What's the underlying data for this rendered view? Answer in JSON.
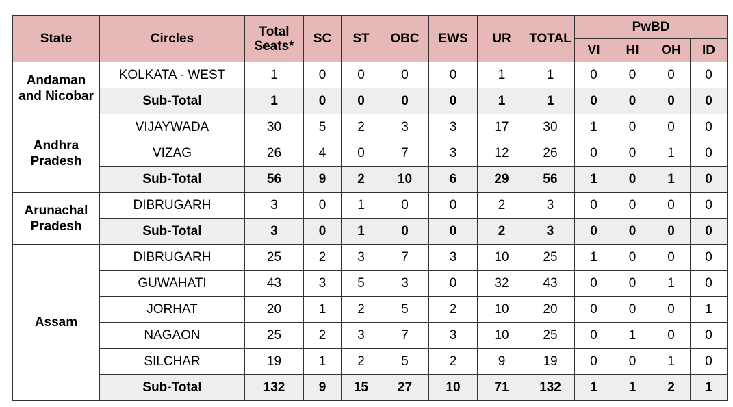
{
  "table": {
    "header": {
      "state": "State",
      "circles": "Circles",
      "total_seats": "Total Seats*",
      "columns": [
        "SC",
        "ST",
        "OBC",
        "EWS",
        "UR",
        "TOTAL"
      ],
      "pwbd": "PwBD",
      "pwbd_columns": [
        "VI",
        "HI",
        "OH",
        "ID"
      ]
    },
    "groups": [
      {
        "state": "Andaman and Nicobar",
        "rows": [
          {
            "circle": "KOLKATA - WEST",
            "values": [
              1,
              0,
              0,
              0,
              0,
              1,
              1,
              0,
              0,
              0,
              0
            ]
          }
        ],
        "subtotal": {
          "label": "Sub-Total",
          "values": [
            1,
            0,
            0,
            0,
            0,
            1,
            1,
            0,
            0,
            0,
            0
          ]
        }
      },
      {
        "state": "Andhra Pradesh",
        "rows": [
          {
            "circle": "VIJAYWADA",
            "values": [
              30,
              5,
              2,
              3,
              3,
              17,
              30,
              1,
              0,
              0,
              0
            ]
          },
          {
            "circle": "VIZAG",
            "values": [
              26,
              4,
              0,
              7,
              3,
              12,
              26,
              0,
              0,
              1,
              0
            ]
          }
        ],
        "subtotal": {
          "label": "Sub-Total",
          "values": [
            56,
            9,
            2,
            10,
            6,
            29,
            56,
            1,
            0,
            1,
            0
          ]
        }
      },
      {
        "state": "Arunachal Pradesh",
        "rows": [
          {
            "circle": "DIBRUGARH",
            "values": [
              3,
              0,
              1,
              0,
              0,
              2,
              3,
              0,
              0,
              0,
              0
            ]
          }
        ],
        "subtotal": {
          "label": "Sub-Total",
          "values": [
            3,
            0,
            1,
            0,
            0,
            2,
            3,
            0,
            0,
            0,
            0
          ]
        }
      },
      {
        "state": "Assam",
        "rows": [
          {
            "circle": "DIBRUGARH",
            "values": [
              25,
              2,
              3,
              7,
              3,
              10,
              25,
              1,
              0,
              0,
              0
            ]
          },
          {
            "circle": "GUWAHATI",
            "values": [
              43,
              3,
              5,
              3,
              0,
              32,
              43,
              0,
              0,
              1,
              0
            ]
          },
          {
            "circle": "JORHAT",
            "values": [
              20,
              1,
              2,
              5,
              2,
              10,
              20,
              0,
              0,
              0,
              1
            ]
          },
          {
            "circle": "NAGAON",
            "values": [
              25,
              2,
              3,
              7,
              3,
              10,
              25,
              0,
              1,
              0,
              0
            ]
          },
          {
            "circle": "SILCHAR",
            "values": [
              19,
              1,
              2,
              5,
              2,
              9,
              19,
              0,
              0,
              1,
              0
            ]
          }
        ],
        "subtotal": {
          "label": "Sub-Total",
          "values": [
            132,
            9,
            15,
            27,
            10,
            71,
            132,
            1,
            1,
            2,
            1
          ]
        }
      }
    ]
  }
}
